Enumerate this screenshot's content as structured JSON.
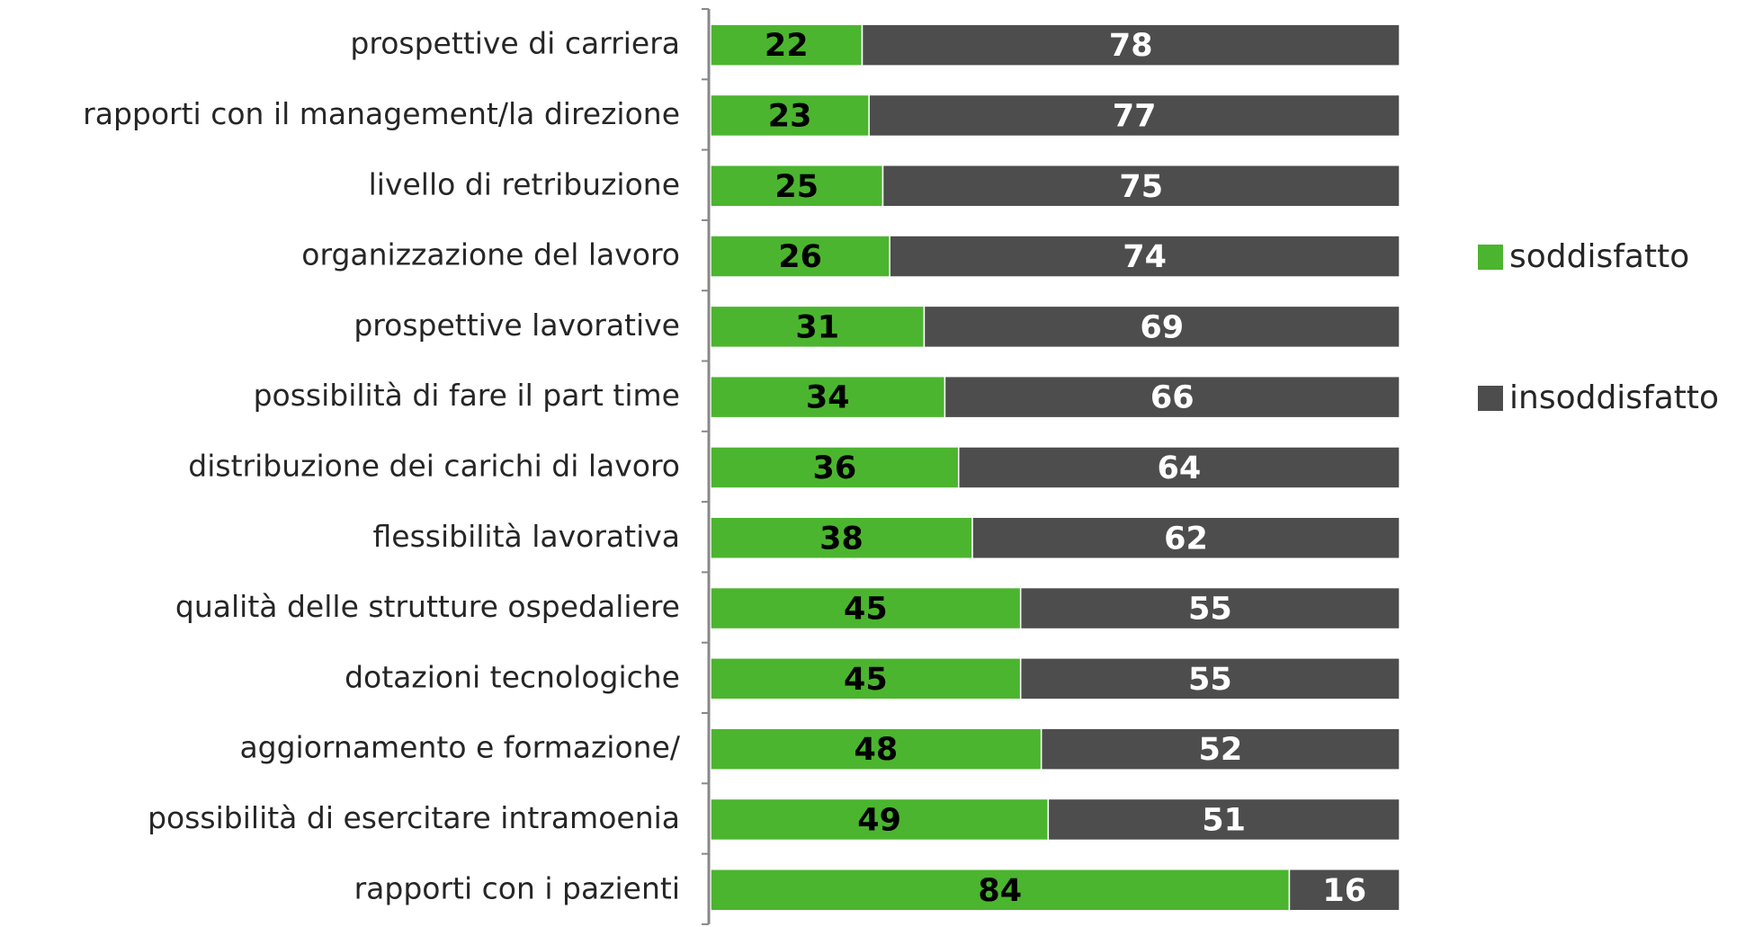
{
  "chart_data": {
    "type": "bar",
    "orientation": "horizontal",
    "stacked": true,
    "categories": [
      "prospettive di carriera",
      "rapporti con il management/la direzione",
      "livello di retribuzione",
      "organizzazione del lavoro",
      "prospettive lavorative",
      "possibilità di fare il part time",
      "distribuzione dei carichi di lavoro",
      "flessibilità lavorativa",
      "qualità delle strutture ospedaliere",
      "dotazioni tecnologiche",
      "aggiornamento e formazione/",
      "possibilità di esercitare intramoenia",
      "rapporti con i pazienti"
    ],
    "series": [
      {
        "name": "soddisfatto",
        "color": "#4cb52f",
        "values": [
          22,
          23,
          25,
          26,
          31,
          34,
          36,
          38,
          45,
          45,
          48,
          49,
          84
        ]
      },
      {
        "name": "insoddisfatto",
        "color": "#4d4d4d",
        "values": [
          78,
          77,
          75,
          74,
          69,
          66,
          64,
          62,
          55,
          55,
          52,
          51,
          16
        ]
      }
    ],
    "xlim": [
      0,
      100
    ],
    "legend": "right"
  }
}
